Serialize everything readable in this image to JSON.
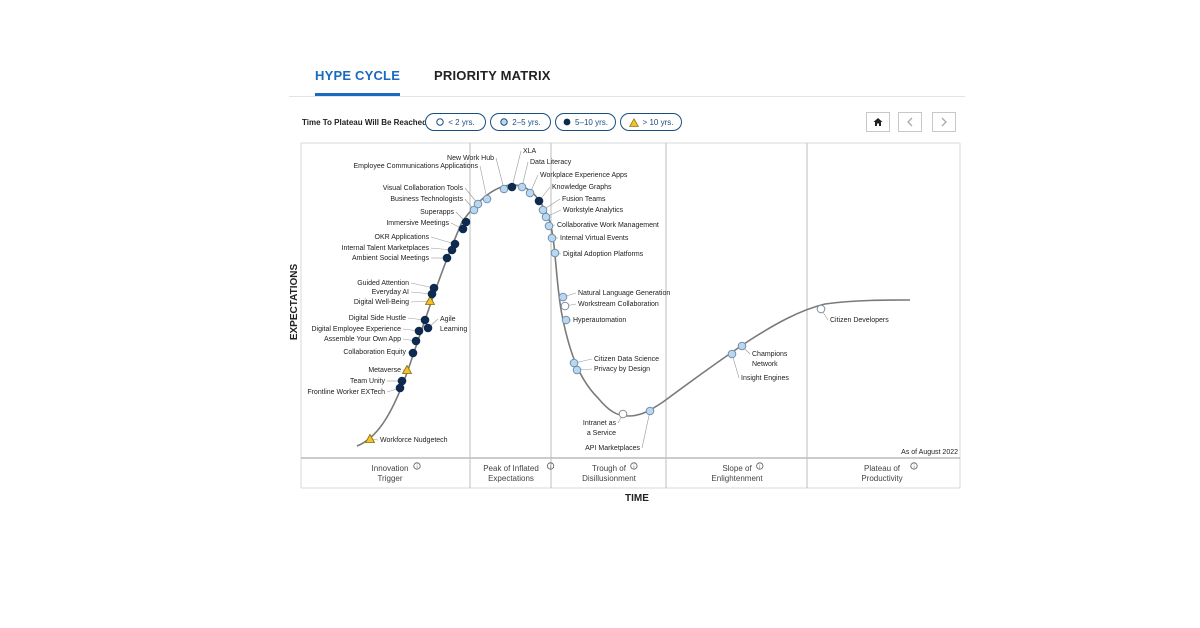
{
  "tabs": [
    {
      "label": "HYPE CYCLE",
      "active": true
    },
    {
      "label": "PRIORITY MATRIX",
      "active": false
    }
  ],
  "filter": {
    "label": "Time To Plateau Will Be Reached:",
    "options": [
      {
        "label": "< 2 yrs.",
        "marker": "circle-white"
      },
      {
        "label": "2–5 yrs.",
        "marker": "circle-lightblue"
      },
      {
        "label": "5–10 yrs.",
        "marker": "circle-navy"
      },
      {
        "label": "> 10 yrs.",
        "marker": "triangle-yellow"
      }
    ]
  },
  "controls": {
    "home_icon": "home-icon",
    "prev_icon": "chevron-left-icon",
    "next_icon": "chevron-right-icon"
  },
  "colors": {
    "accent": "#1a6bbf",
    "navy": "#0e2a4f",
    "lightblue": "#b9d8ef",
    "yellow": "#f2c12e",
    "curve": "#7a7a7a"
  },
  "chart_data": {
    "type": "hype-cycle",
    "xlabel": "TIME",
    "ylabel": "EXPECTATIONS",
    "note": "As of August 2022",
    "phases": [
      {
        "name": "Innovation Trigger",
        "line1": "Innovation",
        "line2": "Trigger"
      },
      {
        "name": "Peak of Inflated Expectations",
        "line1": "Peak of Inflated",
        "line2": "Expectations"
      },
      {
        "name": "Trough of Disillusionment",
        "line1": "Trough of",
        "line2": "Disillusionment"
      },
      {
        "name": "Slope of Enlightenment",
        "line1": "Slope of",
        "line2": "Enlightenment"
      },
      {
        "name": "Plateau of Productivity",
        "line1": "Plateau of",
        "line2": "Productivity"
      }
    ],
    "technologies": [
      {
        "name": "Workforce Nudgetech",
        "plateau": "> 10 yrs."
      },
      {
        "name": "Frontline Worker EXTech",
        "plateau": "5–10 yrs."
      },
      {
        "name": "Team Unity",
        "plateau": "5–10 yrs."
      },
      {
        "name": "Metaverse",
        "plateau": "> 10 yrs."
      },
      {
        "name": "Collaboration Equity",
        "plateau": "5–10 yrs."
      },
      {
        "name": "Assemble Your Own App",
        "plateau": "5–10 yrs."
      },
      {
        "name": "Digital Employee Experience",
        "plateau": "5–10 yrs."
      },
      {
        "name": "Digital Side Hustle",
        "plateau": "5–10 yrs."
      },
      {
        "name": "Agile Learning",
        "plateau": "5–10 yrs."
      },
      {
        "name": "Digital Well-Being",
        "plateau": "> 10 yrs."
      },
      {
        "name": "Everyday AI",
        "plateau": "5–10 yrs."
      },
      {
        "name": "Guided Attention",
        "plateau": "5–10 yrs."
      },
      {
        "name": "Ambient Social Meetings",
        "plateau": "5–10 yrs."
      },
      {
        "name": "Internal Talent Marketplaces",
        "plateau": "5–10 yrs."
      },
      {
        "name": "OKR Applications",
        "plateau": "5–10 yrs."
      },
      {
        "name": "Immersive Meetings",
        "plateau": "5–10 yrs."
      },
      {
        "name": "Superapps",
        "plateau": "5–10 yrs."
      },
      {
        "name": "Business Technologists",
        "plateau": "2–5 yrs."
      },
      {
        "name": "Visual Collaboration Tools",
        "plateau": "2–5 yrs."
      },
      {
        "name": "Employee Communications Applications",
        "plateau": "2–5 yrs."
      },
      {
        "name": "New Work Hub",
        "plateau": "2–5 yrs."
      },
      {
        "name": "XLA",
        "plateau": "5–10 yrs."
      },
      {
        "name": "Data Literacy",
        "plateau": "2–5 yrs."
      },
      {
        "name": "Workplace Experience Apps",
        "plateau": "2–5 yrs."
      },
      {
        "name": "Knowledge Graphs",
        "plateau": "5–10 yrs."
      },
      {
        "name": "Fusion Teams",
        "plateau": "2–5 yrs."
      },
      {
        "name": "Workstyle Analytics",
        "plateau": "2–5 yrs."
      },
      {
        "name": "Collaborative Work Management",
        "plateau": "2–5 yrs."
      },
      {
        "name": "Internal Virtual Events",
        "plateau": "2–5 yrs."
      },
      {
        "name": "Digital Adoption Platforms",
        "plateau": "2–5 yrs."
      },
      {
        "name": "Natural Language Generation",
        "plateau": "2–5 yrs."
      },
      {
        "name": "Workstream Collaboration",
        "plateau": "< 2 yrs."
      },
      {
        "name": "Hyperautomation",
        "plateau": "2–5 yrs."
      },
      {
        "name": "Citizen Data Science",
        "plateau": "2–5 yrs."
      },
      {
        "name": "Privacy by Design",
        "plateau": "2–5 yrs."
      },
      {
        "name": "Intranet as a Service",
        "plateau": "< 2 yrs."
      },
      {
        "name": "API Marketplaces",
        "plateau": "2–5 yrs."
      },
      {
        "name": "Insight Engines",
        "plateau": "2–5 yrs."
      },
      {
        "name": "Champions Network",
        "plateau": "2–5 yrs."
      },
      {
        "name": "Citizen Developers",
        "plateau": "< 2 yrs."
      }
    ]
  }
}
